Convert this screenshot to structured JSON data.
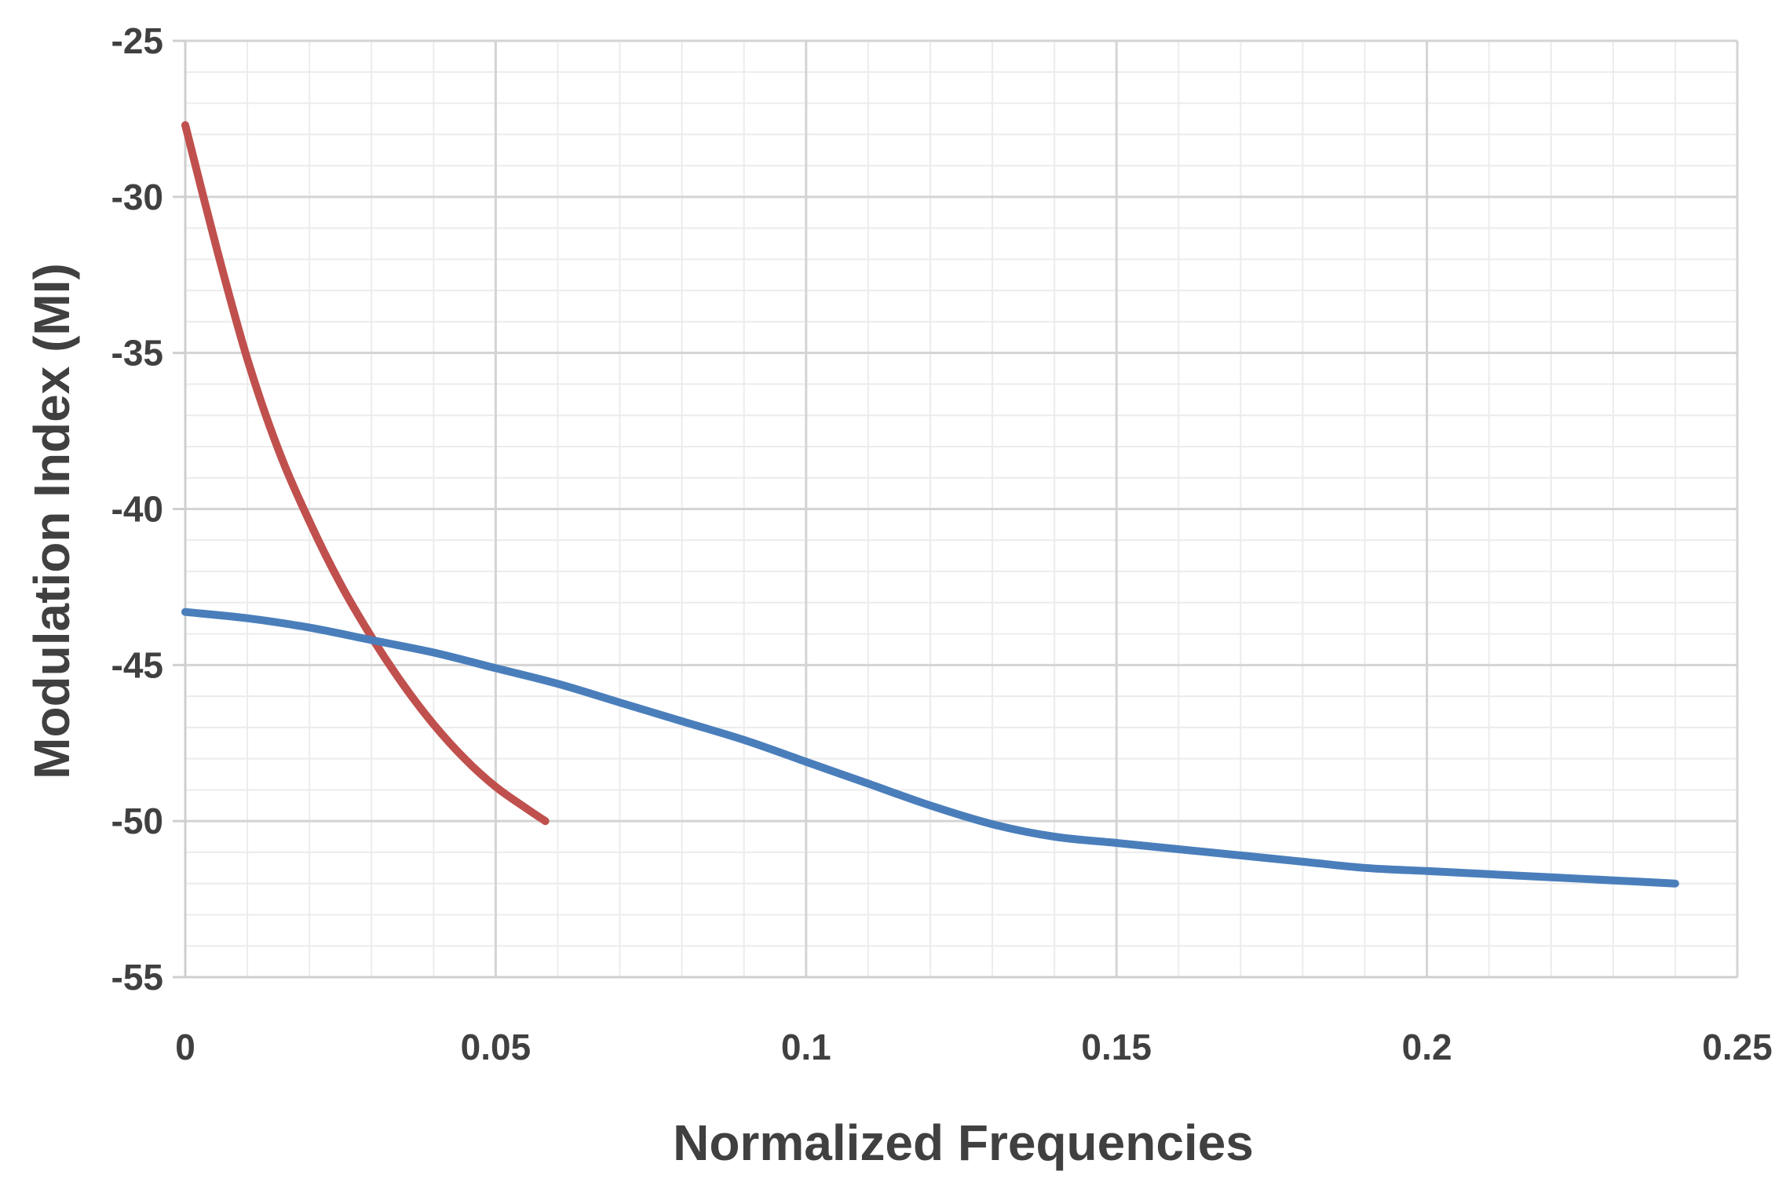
{
  "chart_data": {
    "type": "line",
    "title": "",
    "xlabel": "Normalized Frequencies",
    "ylabel": "Modulation Index (MI)",
    "xlim": [
      0,
      0.25
    ],
    "ylim": [
      -55,
      -25
    ],
    "x_ticks": [
      0,
      0.05,
      0.1,
      0.15,
      0.2,
      0.25
    ],
    "x_tick_labels": [
      "0",
      "0.05",
      "0.1",
      "0.15",
      "0.2",
      "0.25"
    ],
    "y_ticks": [
      -25,
      -30,
      -35,
      -40,
      -45,
      -50,
      -55
    ],
    "y_tick_labels": [
      "-25",
      "-30",
      "-35",
      "-40",
      "-45",
      "-50",
      "-55"
    ],
    "x_minor_step": 0.01,
    "y_minor_step": 1,
    "grid": true,
    "legend": "none",
    "series": [
      {
        "name": "red curve",
        "color": "#c0504d",
        "x": [
          0,
          0.005,
          0.01,
          0.015,
          0.02,
          0.025,
          0.03,
          0.035,
          0.04,
          0.045,
          0.05,
          0.055,
          0.058
        ],
        "y": [
          -27.7,
          -31.6,
          -35.2,
          -38.1,
          -40.4,
          -42.4,
          -44.1,
          -45.6,
          -46.9,
          -48.0,
          -48.9,
          -49.6,
          -50.0
        ]
      },
      {
        "name": "blue curve",
        "color": "#4a7ebb",
        "x": [
          0,
          0.01,
          0.02,
          0.03,
          0.04,
          0.05,
          0.06,
          0.07,
          0.08,
          0.09,
          0.1,
          0.11,
          0.12,
          0.13,
          0.14,
          0.15,
          0.16,
          0.17,
          0.18,
          0.19,
          0.2,
          0.21,
          0.22,
          0.23,
          0.24
        ],
        "y": [
          -43.3,
          -43.5,
          -43.8,
          -44.2,
          -44.6,
          -45.1,
          -45.6,
          -46.2,
          -46.8,
          -47.4,
          -48.1,
          -48.8,
          -49.5,
          -50.1,
          -50.5,
          -50.7,
          -50.9,
          -51.1,
          -51.3,
          -51.5,
          -51.6,
          -51.7,
          -51.8,
          -51.9,
          -52.0
        ]
      }
    ]
  }
}
